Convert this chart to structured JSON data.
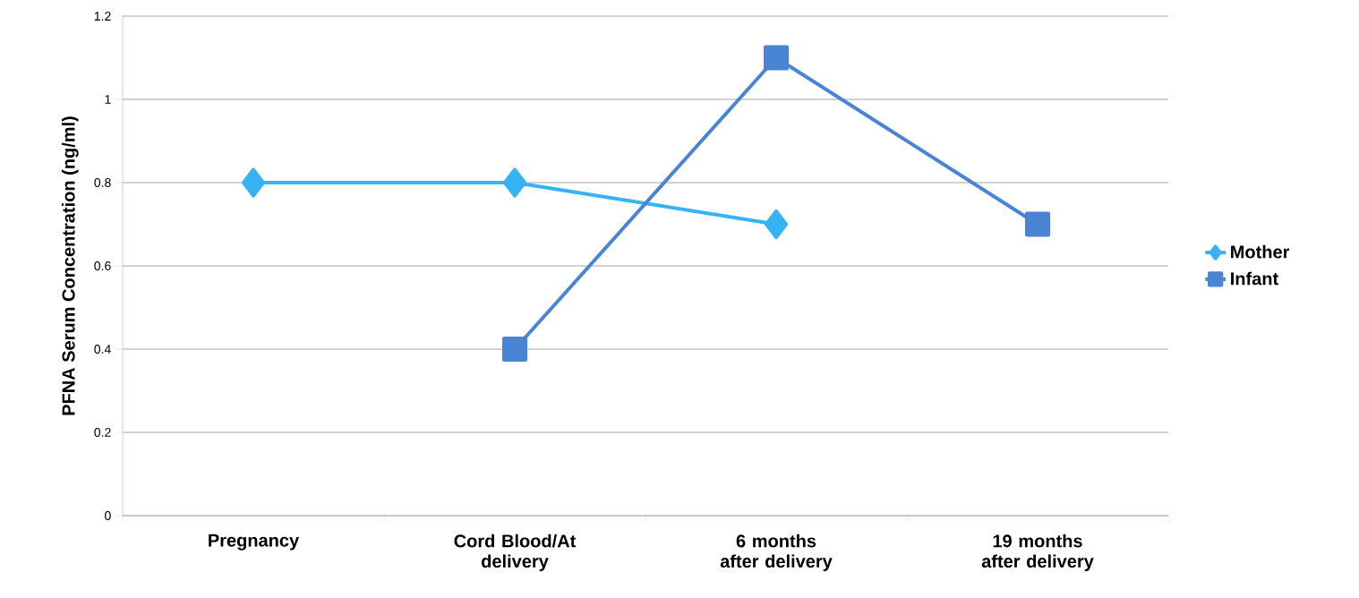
{
  "chart_data": {
    "type": "line",
    "ylabel": "PFNA Serum Concentration (ng/ml)",
    "categories": [
      "Pregnancy",
      "Cord Blood/At delivery",
      "6 months after delivery",
      "19 months after delivery"
    ],
    "series": [
      {
        "name": "Mother",
        "color": "#36b3f4",
        "marker": "diamond",
        "values": [
          0.8,
          0.8,
          0.7,
          null
        ]
      },
      {
        "name": "Infant",
        "color": "#4a84d4",
        "marker": "square",
        "values": [
          null,
          0.4,
          1.1,
          0.7
        ]
      }
    ],
    "ylim": [
      0,
      1.2
    ],
    "yticks": [
      0,
      0.2,
      0.4,
      0.6,
      0.8,
      1,
      1.2
    ],
    "grid": "y",
    "legend": "right",
    "line_style": "solid"
  }
}
